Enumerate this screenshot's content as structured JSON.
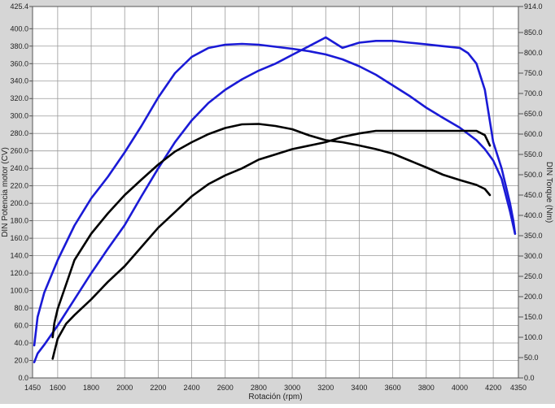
{
  "chart_data": {
    "type": "line",
    "title": "",
    "xlabel": "Rotación (rpm)",
    "ylabel": "DIN Potencia motor (CV)",
    "y2label": "DIN Torque (Nm)",
    "xlim": [
      1450,
      4350
    ],
    "ylim": [
      0,
      425.4
    ],
    "y2lim": [
      0,
      914
    ],
    "x_ticks": [
      1450,
      1600,
      1800,
      2000,
      2200,
      2400,
      2600,
      2800,
      3000,
      3200,
      3400,
      3600,
      3800,
      4000,
      4200,
      4350
    ],
    "y_ticks": [
      "0.0",
      "20.0",
      "40.0",
      "60.0",
      "80.0",
      "100.0",
      "120.0",
      "140.0",
      "160.0",
      "180.0",
      "200.0",
      "220.0",
      "240.0",
      "260.0",
      "280.0",
      "300.0",
      "320.0",
      "340.0",
      "360.0",
      "380.0",
      "400.0",
      "425.4"
    ],
    "y2_ticks": [
      "0.0",
      "50.0",
      "100.0",
      "150.0",
      "200.0",
      "250.0",
      "300.0",
      "350.0",
      "400.0",
      "450.0",
      "500.0",
      "550.0",
      "600.0",
      "650.0",
      "700.0",
      "750.0",
      "800.0",
      "850.0",
      "914.0"
    ],
    "grid": true,
    "legend": "none",
    "colors": {
      "blue": "#1a1ad6",
      "black": "#000000",
      "plot_bg": "#ffffff",
      "frame_bg": "#d6d6d6",
      "grid": "#9a9a9a"
    },
    "series": [
      {
        "axis": "right",
        "color": "#1a1ad6",
        "x": [
          1460,
          1480,
          1520,
          1600,
          1700,
          1800,
          1900,
          2000,
          2100,
          2200,
          2300,
          2400,
          2500,
          2600,
          2700,
          2800,
          2900,
          3000,
          3100,
          3200,
          3300,
          3400,
          3500,
          3600,
          3700,
          3800,
          3900,
          4000,
          4100,
          4150,
          4200,
          4250,
          4300,
          4330
        ],
        "y": [
          80,
          150,
          210,
          290,
          375,
          442,
          495,
          555,
          620,
          690,
          750,
          790,
          812,
          820,
          822,
          820,
          815,
          810,
          804,
          796,
          784,
          767,
          746,
          720,
          694,
          665,
          640,
          616,
          585,
          563,
          535,
          490,
          410,
          355
        ]
      },
      {
        "axis": "left",
        "color": "#1a1ad6",
        "x": [
          1460,
          1480,
          1520,
          1600,
          1700,
          1800,
          1900,
          2000,
          2100,
          2200,
          2300,
          2400,
          2500,
          2600,
          2700,
          2800,
          2900,
          3000,
          3100,
          3200,
          3300,
          3400,
          3500,
          3600,
          3700,
          3800,
          3900,
          4000,
          4050,
          4100,
          4150,
          4200,
          4250,
          4300,
          4320,
          4330
        ],
        "y": [
          18,
          28,
          38,
          60,
          90,
          120,
          148,
          175,
          208,
          240,
          270,
          295,
          315,
          330,
          342,
          352,
          360,
          370,
          380,
          390,
          378,
          384,
          386,
          386,
          384,
          382,
          380,
          378,
          372,
          360,
          330,
          270,
          240,
          200,
          180,
          165
        ]
      },
      {
        "axis": "right",
        "color": "#000000",
        "x": [
          1570,
          1580,
          1600,
          1650,
          1700,
          1800,
          1900,
          2000,
          2100,
          2200,
          2300,
          2400,
          2500,
          2600,
          2700,
          2800,
          2900,
          3000,
          3100,
          3200,
          3300,
          3400,
          3500,
          3600,
          3700,
          3800,
          3900,
          4000,
          4100,
          4150,
          4180
        ],
        "y": [
          100,
          135,
          170,
          230,
          290,
          355,
          405,
          450,
          488,
          525,
          557,
          580,
          600,
          615,
          624,
          625,
          620,
          612,
          597,
          585,
          580,
          572,
          563,
          552,
          535,
          518,
          500,
          487,
          475,
          465,
          450
        ]
      },
      {
        "axis": "left",
        "color": "#000000",
        "x": [
          1570,
          1580,
          1600,
          1650,
          1700,
          1800,
          1900,
          2000,
          2100,
          2200,
          2300,
          2400,
          2500,
          2600,
          2700,
          2800,
          2900,
          3000,
          3100,
          3200,
          3300,
          3400,
          3500,
          3600,
          3700,
          3800,
          3900,
          4000,
          4100,
          4150,
          4180
        ],
        "y": [
          22,
          30,
          45,
          62,
          72,
          90,
          110,
          128,
          150,
          172,
          190,
          208,
          222,
          232,
          240,
          250,
          256,
          262,
          266,
          270,
          276,
          280,
          283,
          283,
          283,
          283,
          283,
          283,
          283,
          278,
          266
        ]
      }
    ]
  }
}
